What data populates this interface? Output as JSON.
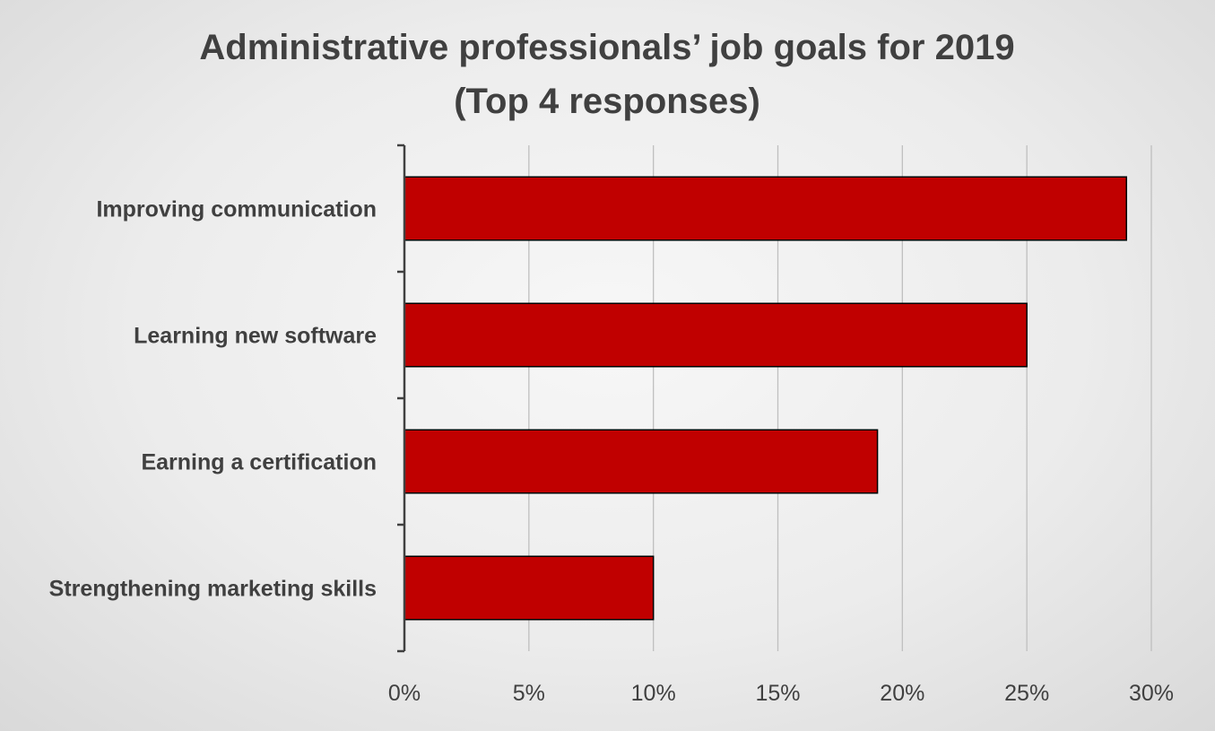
{
  "chart_data": {
    "type": "bar",
    "orientation": "horizontal",
    "title_lines": [
      "Administrative professionals’ job goals for 2019",
      "(Top 4 responses)"
    ],
    "categories": [
      "Improving communication",
      "Learning new software",
      "Earning a certification",
      "Strengthening marketing skills"
    ],
    "values": [
      0.29,
      0.25,
      0.19,
      0.1
    ],
    "xlim": [
      0,
      0.3
    ],
    "xticks": [
      0,
      0.05,
      0.1,
      0.15,
      0.2,
      0.25,
      0.3
    ],
    "xtick_labels": [
      "0%",
      "5%",
      "10%",
      "15%",
      "20%",
      "25%",
      "30%"
    ],
    "xlabel": "",
    "ylabel": "",
    "grid": "vertical",
    "legend": "none",
    "bar_color": "#c00000",
    "bar_edge_color": "#000000"
  }
}
